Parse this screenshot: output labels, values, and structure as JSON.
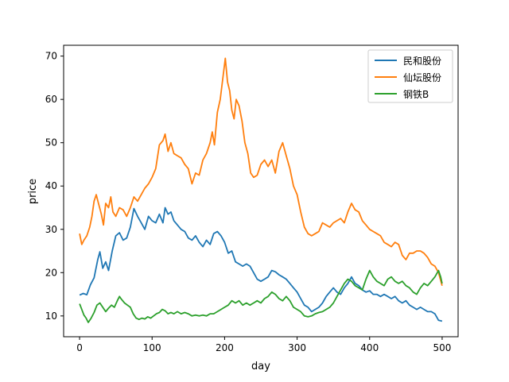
{
  "chart_data": {
    "type": "line",
    "xlabel": "day",
    "ylabel": "price",
    "xlim": [
      -22,
      522
    ],
    "ylim": [
      5.2,
      72.5
    ],
    "xticks": [
      0,
      100,
      200,
      300,
      400,
      500
    ],
    "yticks": [
      10,
      20,
      30,
      40,
      50,
      60,
      70
    ],
    "grid": false,
    "legend_position": "top-right",
    "series": [
      {
        "name": "民和股份",
        "color": "#1f77b4",
        "points": [
          [
            0,
            14.8
          ],
          [
            5,
            15.2
          ],
          [
            10,
            14.9
          ],
          [
            15,
            17.2
          ],
          [
            20,
            18.8
          ],
          [
            25,
            23.0
          ],
          [
            28,
            24.8
          ],
          [
            32,
            21.0
          ],
          [
            36,
            22.5
          ],
          [
            40,
            20.5
          ],
          [
            45,
            25.0
          ],
          [
            50,
            28.5
          ],
          [
            55,
            29.2
          ],
          [
            60,
            27.5
          ],
          [
            65,
            28.0
          ],
          [
            70,
            30.5
          ],
          [
            75,
            34.8
          ],
          [
            80,
            33.0
          ],
          [
            85,
            31.5
          ],
          [
            90,
            30.0
          ],
          [
            95,
            33.0
          ],
          [
            100,
            32.0
          ],
          [
            105,
            31.5
          ],
          [
            110,
            33.5
          ],
          [
            115,
            31.5
          ],
          [
            118,
            35.0
          ],
          [
            122,
            33.5
          ],
          [
            126,
            34.0
          ],
          [
            130,
            32.0
          ],
          [
            135,
            31.0
          ],
          [
            140,
            30.0
          ],
          [
            145,
            29.5
          ],
          [
            150,
            28.0
          ],
          [
            155,
            27.5
          ],
          [
            160,
            28.5
          ],
          [
            165,
            27.0
          ],
          [
            170,
            26.0
          ],
          [
            175,
            27.5
          ],
          [
            180,
            26.5
          ],
          [
            185,
            29.0
          ],
          [
            190,
            29.5
          ],
          [
            195,
            28.5
          ],
          [
            200,
            27.0
          ],
          [
            205,
            24.5
          ],
          [
            210,
            25.0
          ],
          [
            215,
            22.5
          ],
          [
            220,
            22.0
          ],
          [
            225,
            21.5
          ],
          [
            230,
            22.0
          ],
          [
            235,
            21.5
          ],
          [
            240,
            20.0
          ],
          [
            245,
            18.5
          ],
          [
            250,
            18.0
          ],
          [
            255,
            18.5
          ],
          [
            260,
            19.0
          ],
          [
            265,
            20.5
          ],
          [
            270,
            20.2
          ],
          [
            275,
            19.5
          ],
          [
            280,
            19.0
          ],
          [
            285,
            18.5
          ],
          [
            290,
            17.5
          ],
          [
            295,
            16.5
          ],
          [
            300,
            15.5
          ],
          [
            305,
            14.0
          ],
          [
            310,
            12.5
          ],
          [
            315,
            12.0
          ],
          [
            320,
            11.0
          ],
          [
            325,
            11.5
          ],
          [
            330,
            12.0
          ],
          [
            335,
            13.0
          ],
          [
            340,
            14.5
          ],
          [
            345,
            15.5
          ],
          [
            350,
            16.5
          ],
          [
            355,
            15.5
          ],
          [
            360,
            15.0
          ],
          [
            365,
            16.5
          ],
          [
            370,
            17.5
          ],
          [
            375,
            19.0
          ],
          [
            380,
            17.5
          ],
          [
            385,
            17.0
          ],
          [
            390,
            16.0
          ],
          [
            395,
            15.5
          ],
          [
            400,
            15.8
          ],
          [
            405,
            15.0
          ],
          [
            410,
            15.0
          ],
          [
            415,
            14.5
          ],
          [
            420,
            15.0
          ],
          [
            425,
            14.5
          ],
          [
            430,
            14.0
          ],
          [
            435,
            14.5
          ],
          [
            440,
            13.5
          ],
          [
            445,
            13.0
          ],
          [
            450,
            13.5
          ],
          [
            455,
            12.5
          ],
          [
            460,
            12.0
          ],
          [
            465,
            11.5
          ],
          [
            470,
            12.0
          ],
          [
            475,
            11.5
          ],
          [
            480,
            11.0
          ],
          [
            485,
            11.0
          ],
          [
            490,
            10.5
          ],
          [
            495,
            9.0
          ],
          [
            500,
            8.8
          ]
        ]
      },
      {
        "name": "仙坛股份",
        "color": "#ff7f0e",
        "points": [
          [
            0,
            29.0
          ],
          [
            3,
            26.5
          ],
          [
            6,
            27.5
          ],
          [
            10,
            28.5
          ],
          [
            14,
            30.5
          ],
          [
            17,
            33.0
          ],
          [
            20,
            36.5
          ],
          [
            23,
            38.0
          ],
          [
            26,
            36.0
          ],
          [
            30,
            33.5
          ],
          [
            33,
            31.0
          ],
          [
            36,
            36.0
          ],
          [
            40,
            35.0
          ],
          [
            43,
            37.5
          ],
          [
            46,
            34.0
          ],
          [
            50,
            33.0
          ],
          [
            55,
            35.0
          ],
          [
            60,
            34.5
          ],
          [
            65,
            33.0
          ],
          [
            70,
            35.0
          ],
          [
            75,
            37.5
          ],
          [
            80,
            36.5
          ],
          [
            85,
            38.0
          ],
          [
            90,
            39.5
          ],
          [
            95,
            40.5
          ],
          [
            100,
            42.0
          ],
          [
            105,
            44.0
          ],
          [
            110,
            49.5
          ],
          [
            115,
            50.5
          ],
          [
            118,
            52.0
          ],
          [
            122,
            48.0
          ],
          [
            126,
            50.0
          ],
          [
            130,
            47.5
          ],
          [
            135,
            47.0
          ],
          [
            140,
            46.5
          ],
          [
            145,
            45.0
          ],
          [
            150,
            44.0
          ],
          [
            155,
            40.5
          ],
          [
            160,
            43.0
          ],
          [
            165,
            42.5
          ],
          [
            170,
            46.0
          ],
          [
            175,
            47.5
          ],
          [
            180,
            50.0
          ],
          [
            183,
            52.5
          ],
          [
            186,
            49.5
          ],
          [
            190,
            57.0
          ],
          [
            194,
            60.0
          ],
          [
            198,
            65.5
          ],
          [
            201,
            69.5
          ],
          [
            204,
            64.0
          ],
          [
            207,
            62.0
          ],
          [
            210,
            57.5
          ],
          [
            213,
            55.5
          ],
          [
            216,
            60.0
          ],
          [
            220,
            58.5
          ],
          [
            224,
            55.0
          ],
          [
            228,
            50.0
          ],
          [
            232,
            47.5
          ],
          [
            236,
            43.0
          ],
          [
            240,
            42.0
          ],
          [
            245,
            42.5
          ],
          [
            250,
            45.0
          ],
          [
            255,
            46.0
          ],
          [
            260,
            44.5
          ],
          [
            265,
            46.0
          ],
          [
            270,
            43.0
          ],
          [
            275,
            48.0
          ],
          [
            280,
            50.0
          ],
          [
            285,
            47.0
          ],
          [
            290,
            44.0
          ],
          [
            295,
            40.0
          ],
          [
            300,
            38.0
          ],
          [
            305,
            34.0
          ],
          [
            310,
            30.5
          ],
          [
            315,
            29.0
          ],
          [
            320,
            28.5
          ],
          [
            325,
            29.0
          ],
          [
            330,
            29.5
          ],
          [
            335,
            31.5
          ],
          [
            340,
            31.0
          ],
          [
            345,
            30.5
          ],
          [
            350,
            31.5
          ],
          [
            355,
            32.0
          ],
          [
            360,
            32.5
          ],
          [
            365,
            31.5
          ],
          [
            370,
            34.0
          ],
          [
            375,
            36.0
          ],
          [
            380,
            34.5
          ],
          [
            385,
            34.0
          ],
          [
            390,
            32.0
          ],
          [
            395,
            31.0
          ],
          [
            400,
            30.0
          ],
          [
            405,
            29.5
          ],
          [
            410,
            29.0
          ],
          [
            415,
            28.5
          ],
          [
            420,
            27.0
          ],
          [
            425,
            26.5
          ],
          [
            430,
            26.0
          ],
          [
            435,
            27.0
          ],
          [
            440,
            26.5
          ],
          [
            445,
            24.0
          ],
          [
            450,
            23.0
          ],
          [
            455,
            24.5
          ],
          [
            460,
            24.5
          ],
          [
            465,
            25.0
          ],
          [
            470,
            25.0
          ],
          [
            475,
            24.5
          ],
          [
            480,
            23.5
          ],
          [
            485,
            22.0
          ],
          [
            490,
            21.5
          ],
          [
            495,
            20.0
          ],
          [
            500,
            17.0
          ]
        ]
      },
      {
        "name": "钢铁B",
        "color": "#2ca02c",
        "points": [
          [
            0,
            12.8
          ],
          [
            3,
            11.5
          ],
          [
            6,
            10.2
          ],
          [
            9,
            9.5
          ],
          [
            12,
            8.5
          ],
          [
            16,
            9.5
          ],
          [
            20,
            10.8
          ],
          [
            24,
            12.5
          ],
          [
            28,
            13.0
          ],
          [
            32,
            12.0
          ],
          [
            36,
            11.0
          ],
          [
            40,
            11.8
          ],
          [
            44,
            12.5
          ],
          [
            48,
            12.0
          ],
          [
            52,
            13.5
          ],
          [
            55,
            14.5
          ],
          [
            58,
            13.8
          ],
          [
            62,
            13.0
          ],
          [
            66,
            12.5
          ],
          [
            70,
            12.0
          ],
          [
            74,
            10.5
          ],
          [
            78,
            9.5
          ],
          [
            82,
            9.2
          ],
          [
            86,
            9.5
          ],
          [
            90,
            9.3
          ],
          [
            94,
            9.8
          ],
          [
            98,
            9.5
          ],
          [
            102,
            10.0
          ],
          [
            106,
            10.5
          ],
          [
            110,
            10.8
          ],
          [
            114,
            11.5
          ],
          [
            118,
            11.2
          ],
          [
            122,
            10.5
          ],
          [
            126,
            10.8
          ],
          [
            130,
            10.5
          ],
          [
            135,
            11.0
          ],
          [
            140,
            10.5
          ],
          [
            145,
            10.8
          ],
          [
            150,
            10.5
          ],
          [
            155,
            10.0
          ],
          [
            160,
            10.2
          ],
          [
            165,
            10.0
          ],
          [
            170,
            10.2
          ],
          [
            175,
            10.0
          ],
          [
            180,
            10.5
          ],
          [
            185,
            10.5
          ],
          [
            190,
            11.0
          ],
          [
            195,
            11.5
          ],
          [
            200,
            12.0
          ],
          [
            205,
            12.5
          ],
          [
            210,
            13.5
          ],
          [
            215,
            13.0
          ],
          [
            220,
            13.5
          ],
          [
            225,
            12.5
          ],
          [
            230,
            13.0
          ],
          [
            235,
            12.5
          ],
          [
            240,
            13.0
          ],
          [
            245,
            13.5
          ],
          [
            250,
            13.0
          ],
          [
            255,
            14.0
          ],
          [
            260,
            14.5
          ],
          [
            265,
            15.5
          ],
          [
            270,
            15.0
          ],
          [
            275,
            14.0
          ],
          [
            280,
            13.5
          ],
          [
            285,
            14.5
          ],
          [
            290,
            13.5
          ],
          [
            295,
            12.0
          ],
          [
            300,
            11.5
          ],
          [
            305,
            11.0
          ],
          [
            310,
            10.0
          ],
          [
            315,
            9.8
          ],
          [
            320,
            10.0
          ],
          [
            325,
            10.5
          ],
          [
            330,
            10.8
          ],
          [
            335,
            11.0
          ],
          [
            340,
            11.5
          ],
          [
            345,
            12.0
          ],
          [
            350,
            13.0
          ],
          [
            355,
            14.5
          ],
          [
            360,
            16.0
          ],
          [
            365,
            17.5
          ],
          [
            370,
            18.5
          ],
          [
            375,
            18.0
          ],
          [
            380,
            17.0
          ],
          [
            385,
            16.5
          ],
          [
            390,
            16.0
          ],
          [
            395,
            18.5
          ],
          [
            400,
            20.5
          ],
          [
            405,
            19.0
          ],
          [
            410,
            18.0
          ],
          [
            415,
            17.5
          ],
          [
            420,
            17.0
          ],
          [
            425,
            18.5
          ],
          [
            430,
            19.0
          ],
          [
            435,
            18.0
          ],
          [
            440,
            17.5
          ],
          [
            445,
            18.0
          ],
          [
            450,
            17.0
          ],
          [
            455,
            16.5
          ],
          [
            460,
            15.5
          ],
          [
            465,
            15.0
          ],
          [
            470,
            16.5
          ],
          [
            475,
            17.5
          ],
          [
            480,
            17.0
          ],
          [
            485,
            18.0
          ],
          [
            490,
            19.0
          ],
          [
            495,
            20.5
          ],
          [
            498,
            19.0
          ],
          [
            500,
            17.5
          ]
        ]
      }
    ]
  }
}
